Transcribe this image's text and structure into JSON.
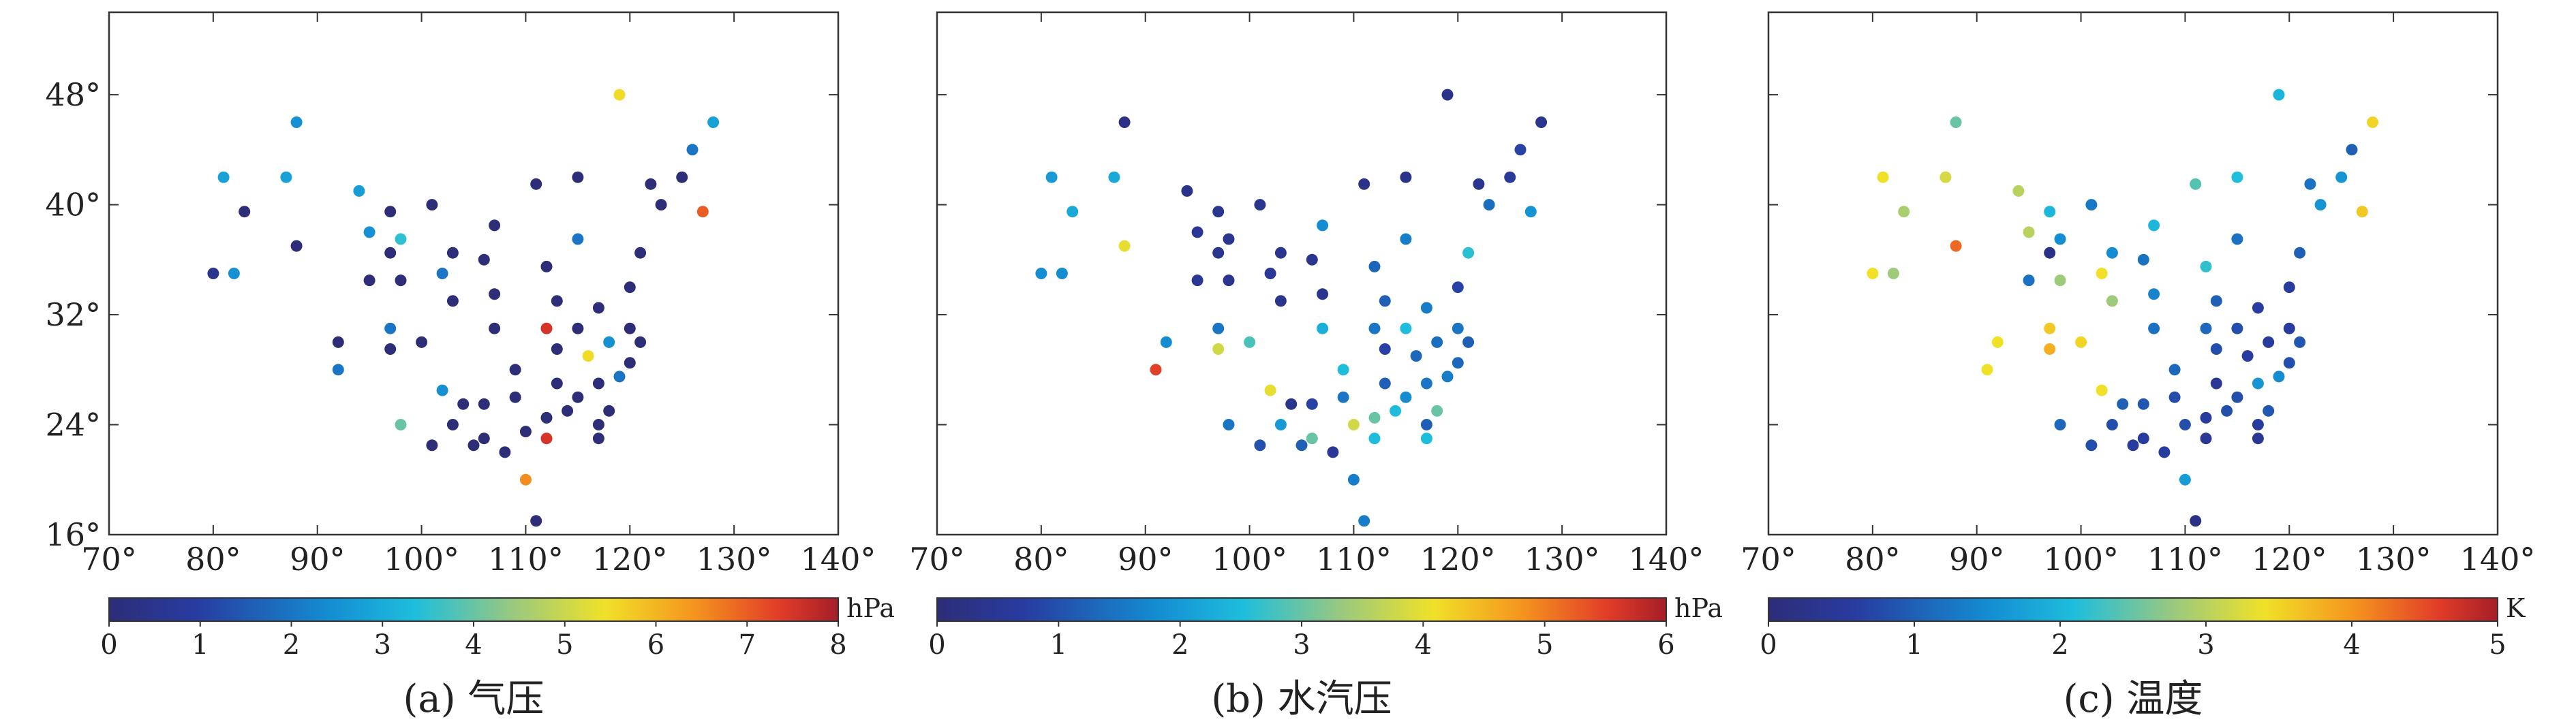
{
  "chart_data": [
    {
      "type": "scatter",
      "title": "(a) 气压",
      "colorbar": {
        "label": "hPa",
        "min": 0,
        "max": 8,
        "ticks": [
          "0",
          "1",
          "2",
          "3",
          "4",
          "5",
          "6",
          "7",
          "8"
        ]
      },
      "xlim": [
        70,
        140
      ],
      "ylim": [
        16,
        54
      ],
      "xticks": [
        "70°",
        "80°",
        "90°",
        "100°",
        "110°",
        "120°",
        "130°",
        "140°"
      ],
      "yticks": [
        "16°",
        "24°",
        "32°",
        "40°",
        "48°"
      ],
      "points": [
        [
          80,
          35,
          0.5
        ],
        [
          81,
          42,
          2.8
        ],
        [
          82,
          35,
          2.5
        ],
        [
          83,
          39.5,
          0
        ],
        [
          87,
          42,
          2.8
        ],
        [
          88,
          46,
          2.5
        ],
        [
          88,
          37,
          0
        ],
        [
          92,
          28,
          2
        ],
        [
          92,
          30,
          0
        ],
        [
          94,
          41,
          2.7
        ],
        [
          95,
          38,
          2.5
        ],
        [
          95,
          34.5,
          0
        ],
        [
          97,
          39.5,
          0
        ],
        [
          97,
          36.5,
          0
        ],
        [
          97,
          31,
          2
        ],
        [
          97,
          29.5,
          0
        ],
        [
          98,
          37.5,
          3.5
        ],
        [
          98,
          34.5,
          0
        ],
        [
          98,
          24,
          4
        ],
        [
          100,
          30,
          0
        ],
        [
          101,
          40,
          0
        ],
        [
          101,
          22.5,
          0
        ],
        [
          102,
          35,
          2
        ],
        [
          102,
          26.5,
          2.5
        ],
        [
          103,
          36.5,
          0
        ],
        [
          103,
          24,
          0
        ],
        [
          103,
          33,
          0
        ],
        [
          104,
          25.5,
          0
        ],
        [
          105,
          22.5,
          0
        ],
        [
          106,
          36,
          0
        ],
        [
          106,
          25.5,
          0
        ],
        [
          106,
          23,
          0
        ],
        [
          107,
          33.5,
          0
        ],
        [
          107,
          31,
          0
        ],
        [
          107,
          38.5,
          0
        ],
        [
          108,
          22,
          0
        ],
        [
          109,
          28,
          0
        ],
        [
          109,
          26,
          0
        ],
        [
          110,
          20,
          6.5
        ],
        [
          110,
          23.5,
          0
        ],
        [
          111,
          41.5,
          0
        ],
        [
          111,
          17,
          0
        ],
        [
          112,
          35.5,
          0
        ],
        [
          112,
          24.5,
          0
        ],
        [
          112,
          31,
          7.5
        ],
        [
          112,
          23,
          7.5
        ],
        [
          113,
          33,
          0
        ],
        [
          113,
          29.5,
          0
        ],
        [
          113,
          27,
          0
        ],
        [
          114,
          25,
          0
        ],
        [
          115,
          42,
          0
        ],
        [
          115,
          31,
          0
        ],
        [
          115,
          37.5,
          2
        ],
        [
          115,
          26,
          0
        ],
        [
          116,
          29,
          5.5
        ],
        [
          117,
          27,
          0
        ],
        [
          117,
          23,
          0
        ],
        [
          117,
          32.5,
          0
        ],
        [
          117,
          24,
          0
        ],
        [
          118,
          30,
          2.5
        ],
        [
          118,
          25,
          0
        ],
        [
          119,
          27.5,
          2
        ],
        [
          119,
          48,
          5.5
        ],
        [
          120,
          34,
          0
        ],
        [
          120,
          31,
          0
        ],
        [
          120,
          28.5,
          0
        ],
        [
          121,
          30,
          0
        ],
        [
          121,
          36.5,
          0
        ],
        [
          122,
          41.5,
          0
        ],
        [
          123,
          40,
          0
        ],
        [
          125,
          42,
          0
        ],
        [
          126,
          44,
          2
        ],
        [
          127,
          39.5,
          7
        ],
        [
          128,
          46,
          2.8
        ]
      ]
    },
    {
      "type": "scatter",
      "title": "(b) 水汽压",
      "colorbar": {
        "label": "hPa",
        "min": 0,
        "max": 6,
        "ticks": [
          "0",
          "1",
          "2",
          "3",
          "4",
          "5",
          "6"
        ]
      },
      "xlim": [
        70,
        140
      ],
      "ylim": [
        16,
        54
      ],
      "xticks": [
        "70°",
        "80°",
        "90°",
        "100°",
        "110°",
        "120°",
        "130°",
        "140°"
      ],
      "yticks": [
        "16°",
        "24°",
        "32°",
        "40°",
        "48°"
      ],
      "points": [
        [
          80,
          35,
          1.8
        ],
        [
          81,
          42,
          2
        ],
        [
          82,
          35,
          1.8
        ],
        [
          83,
          39.5,
          2.2
        ],
        [
          87,
          42,
          2.2
        ],
        [
          88,
          46,
          0.2
        ],
        [
          88,
          37,
          4
        ],
        [
          91,
          28,
          5.5
        ],
        [
          92,
          30,
          1.8
        ],
        [
          94,
          41,
          0.3
        ],
        [
          95,
          38,
          0.5
        ],
        [
          95,
          34.5,
          0.5
        ],
        [
          97,
          39.5,
          0.4
        ],
        [
          97,
          36.5,
          0.4
        ],
        [
          97,
          31,
          1.5
        ],
        [
          97,
          29.5,
          3.8
        ],
        [
          98,
          37.5,
          0.4
        ],
        [
          98,
          34.5,
          0.4
        ],
        [
          98,
          24,
          1.5
        ],
        [
          100,
          30,
          2.8
        ],
        [
          101,
          40,
          0.4
        ],
        [
          101,
          22.5,
          1
        ],
        [
          102,
          35,
          0.5
        ],
        [
          102,
          26.5,
          4
        ],
        [
          103,
          36.5,
          0.4
        ],
        [
          103,
          24,
          2
        ],
        [
          103,
          33,
          0.4
        ],
        [
          104,
          25.5,
          0.4
        ],
        [
          105,
          22.5,
          1.2
        ],
        [
          106,
          36,
          0.4
        ],
        [
          106,
          25.5,
          0.8
        ],
        [
          106,
          23,
          3
        ],
        [
          107,
          33.5,
          0.4
        ],
        [
          107,
          31,
          2.3
        ],
        [
          107,
          38.5,
          1.8
        ],
        [
          108,
          22,
          0.5
        ],
        [
          109,
          28,
          2.5
        ],
        [
          109,
          26,
          1.5
        ],
        [
          110,
          20,
          1.6
        ],
        [
          110,
          24,
          3.8
        ],
        [
          111,
          41.5,
          0.3
        ],
        [
          111,
          17,
          1.6
        ],
        [
          112,
          35.5,
          1.3
        ],
        [
          112,
          24.5,
          3
        ],
        [
          112,
          31,
          1.5
        ],
        [
          112,
          23,
          2.5
        ],
        [
          113,
          33,
          1.2
        ],
        [
          113,
          29.5,
          0.8
        ],
        [
          113,
          27,
          1.2
        ],
        [
          114,
          25,
          2.5
        ],
        [
          115,
          42,
          0.3
        ],
        [
          115,
          31,
          2.5
        ],
        [
          115,
          37.5,
          1.6
        ],
        [
          115,
          26,
          1.8
        ],
        [
          116,
          29,
          1.3
        ],
        [
          117,
          27,
          1.5
        ],
        [
          117,
          23,
          2.5
        ],
        [
          117,
          32.5,
          1.6
        ],
        [
          117,
          24,
          1.2
        ],
        [
          118,
          30,
          1.4
        ],
        [
          118,
          25,
          3
        ],
        [
          119,
          27.5,
          1.6
        ],
        [
          119,
          48,
          0.3
        ],
        [
          120,
          34,
          0.8
        ],
        [
          120,
          31,
          1.5
        ],
        [
          120,
          28.5,
          1.3
        ],
        [
          121,
          30,
          1.2
        ],
        [
          121,
          36.5,
          2.6
        ],
        [
          122,
          41.5,
          0.4
        ],
        [
          123,
          40,
          1.4
        ],
        [
          125,
          42,
          0.6
        ],
        [
          126,
          44,
          0.8
        ],
        [
          127,
          39.5,
          1.9
        ],
        [
          128,
          46,
          0.4
        ]
      ]
    },
    {
      "type": "scatter",
      "title": "(c) 温度",
      "colorbar": {
        "label": "K",
        "min": 0,
        "max": 5,
        "ticks": [
          "0",
          "1",
          "2",
          "3",
          "4",
          "5"
        ]
      },
      "xlim": [
        70,
        140
      ],
      "ylim": [
        16,
        54
      ],
      "xticks": [
        "70°",
        "80°",
        "90°",
        "100°",
        "110°",
        "120°",
        "130°",
        "140°"
      ],
      "yticks": [
        "16°",
        "24°",
        "32°",
        "40°",
        "48°"
      ],
      "points": [
        [
          80,
          35,
          3.4
        ],
        [
          81,
          42,
          3.4
        ],
        [
          82,
          35,
          2.8
        ],
        [
          83,
          39.5,
          2.9
        ],
        [
          87,
          42,
          3.2
        ],
        [
          88,
          46,
          2.5
        ],
        [
          88,
          37,
          4.3
        ],
        [
          91,
          28,
          3.4
        ],
        [
          92,
          30,
          3.4
        ],
        [
          94,
          41,
          3
        ],
        [
          95,
          38,
          3
        ],
        [
          95,
          34.5,
          1.2
        ],
        [
          97,
          39.5,
          2
        ],
        [
          97,
          36.5,
          0.2
        ],
        [
          97,
          31,
          3.6
        ],
        [
          97,
          29.5,
          3.8
        ],
        [
          98,
          37.5,
          1.5
        ],
        [
          98,
          34.5,
          2.8
        ],
        [
          98,
          24,
          1.1
        ],
        [
          100,
          30,
          3.5
        ],
        [
          101,
          40,
          1.3
        ],
        [
          101,
          22.5,
          0.8
        ],
        [
          102,
          35,
          3.4
        ],
        [
          102,
          26.5,
          3.4
        ],
        [
          103,
          36.5,
          1.5
        ],
        [
          103,
          24,
          0.8
        ],
        [
          103,
          33,
          2.8
        ],
        [
          104,
          25.5,
          1
        ],
        [
          105,
          22.5,
          0.6
        ],
        [
          106,
          36,
          1.2
        ],
        [
          106,
          25.5,
          0.9
        ],
        [
          106,
          23,
          0.6
        ],
        [
          107,
          33.5,
          1.4
        ],
        [
          107,
          31,
          1.2
        ],
        [
          107,
          38.5,
          2
        ],
        [
          108,
          22,
          0.6
        ],
        [
          109,
          28,
          1.1
        ],
        [
          109,
          26,
          0.8
        ],
        [
          110,
          20,
          1.7
        ],
        [
          110,
          24,
          0.8
        ],
        [
          111,
          41.5,
          2.4
        ],
        [
          111,
          17,
          0.2
        ],
        [
          112,
          35.5,
          2.2
        ],
        [
          112,
          24.5,
          0.6
        ],
        [
          112,
          31,
          1.1
        ],
        [
          112,
          23,
          0.4
        ],
        [
          113,
          33,
          1
        ],
        [
          113,
          29.5,
          0.8
        ],
        [
          113,
          27,
          0.4
        ],
        [
          114,
          25,
          0.8
        ],
        [
          115,
          42,
          2.1
        ],
        [
          115,
          31,
          0.8
        ],
        [
          115,
          37.5,
          1.2
        ],
        [
          115,
          26,
          0.8
        ],
        [
          116,
          29,
          0.6
        ],
        [
          117,
          27,
          1.6
        ],
        [
          117,
          23,
          0.4
        ],
        [
          117,
          32.5,
          0.6
        ],
        [
          117,
          24,
          0.6
        ],
        [
          118,
          30,
          0.6
        ],
        [
          118,
          25,
          0.9
        ],
        [
          119,
          27.5,
          1.5
        ],
        [
          119,
          48,
          2
        ],
        [
          120,
          34,
          0.6
        ],
        [
          120,
          31,
          0.6
        ],
        [
          120,
          28.5,
          0.8
        ],
        [
          121,
          30,
          0.9
        ],
        [
          121,
          36.5,
          1
        ],
        [
          122,
          41.5,
          1.2
        ],
        [
          123,
          40,
          1.6
        ],
        [
          125,
          42,
          1.6
        ],
        [
          126,
          44,
          1
        ],
        [
          127,
          39.5,
          3.6
        ],
        [
          128,
          46,
          3.5
        ]
      ]
    }
  ]
}
